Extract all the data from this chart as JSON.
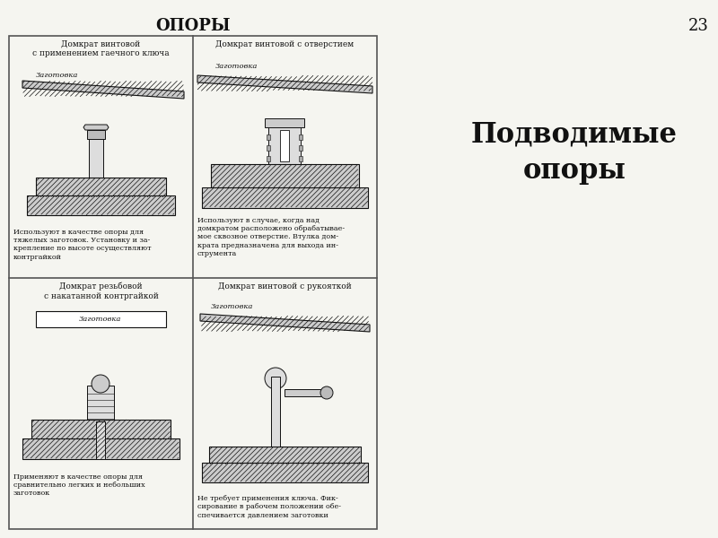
{
  "page_title": "ОПОРЫ",
  "page_number": "23",
  "sidebar_title": "Подводимые\nопоры",
  "bg_color": "#f5f5f0",
  "border_color": "#333333",
  "text_color": "#111111",
  "cell_titles": [
    "Домкрат винтовой\nс применением гаечного ключа",
    "Домкрат винтовой с отверстием",
    "Домкрат резьбовой\nс накатанной контргайкой",
    "Домкрат винтовой с рукояткой"
  ],
  "cell_labels": [
    "Заготовка",
    "Заготовка",
    "Заготовка",
    "Заготовка"
  ],
  "cell_descriptions": [
    "Используют в качестве опоры для\nтяжелых заготовок. Установку и за-\nкрепление по высоте осуществляют\nконтргайкой",
    "Используют в случае, когда над\nдомкратом расположено обрабатывае-\nмое сквозное отверстие. Втулка дом-\nкрата предназначена для выхода ин-\nструмента",
    "Применяют в качестве опоры для\nсравнительно легких и небольших\nзаготовок",
    "Не требует применения ключа. Фик-\nсирование в рабочем положении обе-\nспечивается давлением заготовки"
  ],
  "grid_color": "#555555",
  "hatch_color": "#555555",
  "label_italic": true
}
